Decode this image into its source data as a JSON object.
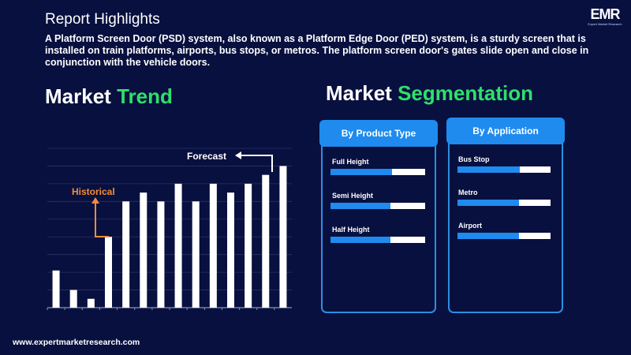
{
  "header": {
    "title": "Report Highlights",
    "logo_text": "EMR",
    "logo_subtext": "Expert Market Research"
  },
  "description": "A Platform Screen Door (PSD) system, also known as a Platform Edge Door (PED) system, is a sturdy screen that is installed on train platforms, airports, bus stops, or metros. The platform screen door's gates slide open and close in conjunction with the vehicle doors.",
  "trend": {
    "heading_white": "Market",
    "heading_green": "Trend"
  },
  "segmentation": {
    "heading_white": "Market",
    "heading_green": "Segmentation",
    "cards": [
      {
        "title": "By Product Type",
        "items": [
          {
            "label": "Full Height",
            "value": 0.65
          },
          {
            "label": "Semi Height",
            "value": 0.63
          },
          {
            "label": "Half Height",
            "value": 0.63
          }
        ]
      },
      {
        "title": "By Application",
        "items": [
          {
            "label": "Bus  Stop",
            "value": 0.67
          },
          {
            "label": "Metro",
            "value": 0.66
          },
          {
            "label": "Airport",
            "value": 0.66
          }
        ]
      }
    ]
  },
  "chart_data": {
    "type": "bar",
    "values": [
      21,
      10,
      5,
      40,
      60,
      65,
      60,
      70,
      60,
      70,
      65,
      70,
      75,
      80
    ],
    "ylim": [
      0,
      90
    ],
    "grid": true,
    "annotations": {
      "historical": "Historical",
      "forecast": "Forecast"
    },
    "colors": {
      "bars": "#ffffff",
      "historical": "#f28c3a",
      "forecast": "#ffffff"
    }
  },
  "footer": {
    "url": "www.expertmarketresearch.com"
  }
}
